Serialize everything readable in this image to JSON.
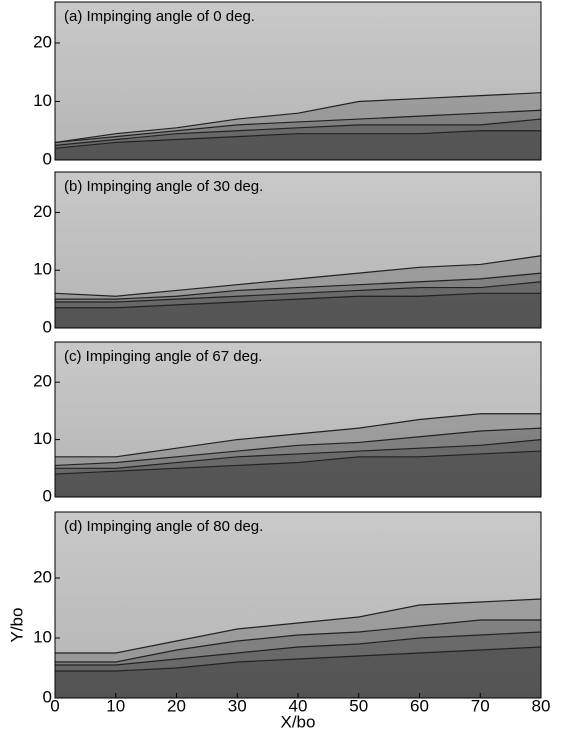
{
  "chart_data": [
    {
      "type": "contour",
      "title": "(a) Impinging angle of 0 deg.",
      "x": [
        0,
        10,
        20,
        30,
        40,
        50,
        60,
        70,
        80
      ],
      "xlim": [
        0,
        80
      ],
      "ylim": [
        0,
        27
      ],
      "yticks": [
        0,
        10,
        20
      ],
      "series": [
        {
          "color": "#222222",
          "values": [
            3,
            4.5,
            5.5,
            7,
            8,
            10,
            10.5,
            11,
            11.5
          ]
        },
        {
          "color": "#222222",
          "values": [
            3,
            4,
            5,
            6,
            6.5,
            7,
            7.5,
            8,
            8.5
          ]
        },
        {
          "color": "#222222",
          "values": [
            2.5,
            3.5,
            4.5,
            5,
            5.5,
            6,
            6,
            6,
            7
          ]
        },
        {
          "color": "#222222",
          "values": [
            2,
            3,
            3.5,
            4,
            4.5,
            4.5,
            4.5,
            5,
            5
          ]
        }
      ]
    },
    {
      "type": "contour",
      "title": "(b) Impinging angle of 30 deg.",
      "x": [
        0,
        10,
        20,
        30,
        40,
        50,
        60,
        70,
        80
      ],
      "xlim": [
        0,
        80
      ],
      "ylim": [
        0,
        27
      ],
      "yticks": [
        0,
        10,
        20
      ],
      "series": [
        {
          "color": "#222222",
          "values": [
            6,
            5.5,
            6.5,
            7.5,
            8.5,
            9.5,
            10.5,
            11,
            12.5
          ]
        },
        {
          "color": "#222222",
          "values": [
            5,
            5,
            5.5,
            6.5,
            7,
            7.5,
            8,
            8.5,
            9.5
          ]
        },
        {
          "color": "#222222",
          "values": [
            4.5,
            4.5,
            5,
            5.5,
            6,
            6.5,
            7,
            7,
            8
          ]
        },
        {
          "color": "#222222",
          "values": [
            3.5,
            3.5,
            4,
            4.5,
            5,
            5.5,
            5.5,
            6,
            6
          ]
        }
      ]
    },
    {
      "type": "contour",
      "title": "(c) Impinging angle of 67 deg.",
      "x": [
        0,
        10,
        20,
        30,
        40,
        50,
        60,
        70,
        80
      ],
      "xlim": [
        0,
        80
      ],
      "ylim": [
        0,
        27
      ],
      "yticks": [
        0,
        10,
        20
      ],
      "series": [
        {
          "color": "#222222",
          "values": [
            7,
            7,
            8.5,
            10,
            11,
            12,
            13.5,
            14.5,
            14.5
          ]
        },
        {
          "color": "#222222",
          "values": [
            5.5,
            6,
            7,
            8,
            9,
            9.5,
            10.5,
            11.5,
            12
          ]
        },
        {
          "color": "#222222",
          "values": [
            5,
            5,
            6,
            7,
            7.5,
            8,
            8.5,
            9,
            10
          ]
        },
        {
          "color": "#222222",
          "values": [
            4,
            4.5,
            5,
            5.5,
            6,
            7,
            7,
            7.5,
            8
          ]
        }
      ]
    },
    {
      "type": "contour",
      "title": "(d) Impinging angle of 80 deg.",
      "x": [
        0,
        10,
        20,
        30,
        40,
        50,
        60,
        70,
        80
      ],
      "xlim": [
        0,
        80
      ],
      "ylim": [
        0,
        31
      ],
      "yticks": [
        0,
        10,
        20
      ],
      "xticks": [
        0,
        10,
        20,
        30,
        40,
        50,
        60,
        70,
        80
      ],
      "xlabel": "X/bo",
      "ylabel": "Y/bo",
      "series": [
        {
          "color": "#222222",
          "values": [
            7.5,
            7.5,
            9.5,
            11.5,
            12.5,
            13.5,
            15.5,
            16,
            16.5
          ]
        },
        {
          "color": "#222222",
          "values": [
            6,
            6,
            8,
            9.5,
            10.5,
            11,
            12,
            13,
            13
          ]
        },
        {
          "color": "#222222",
          "values": [
            5.5,
            5.5,
            6.5,
            7.5,
            8.5,
            9,
            10,
            10.5,
            11
          ]
        },
        {
          "color": "#222222",
          "values": [
            4.5,
            4.5,
            5,
            6,
            6.5,
            7,
            7.5,
            8,
            8.5
          ]
        }
      ]
    }
  ]
}
